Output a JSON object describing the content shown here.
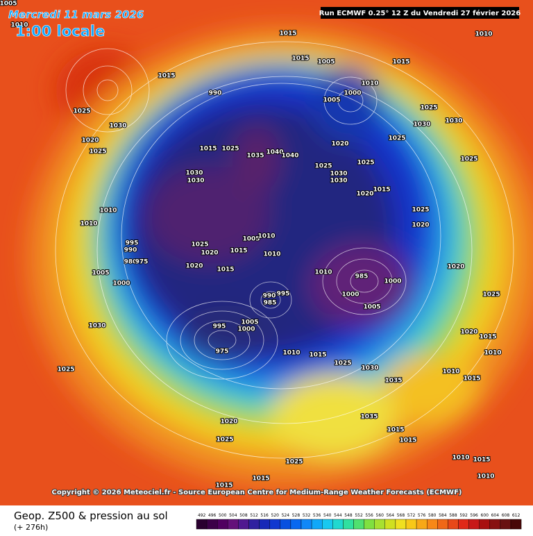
{
  "header": {
    "date": "Mercredi 11 mars 2026",
    "time": "1:00 locale",
    "run": "Run ECMWF 0.25° 12 Z du Vendredi 27 février 2026"
  },
  "footer": {
    "copyright": "Copyright © 2026 Meteociel.fr - Source European Centre for Medium-Range Weather Forecasts (ECMWF)",
    "legend_title": "Geop. Z500 & pression au sol",
    "lead_time": "(+ 276h)"
  },
  "colorbar": {
    "labels": [
      492,
      496,
      500,
      504,
      508,
      512,
      516,
      520,
      524,
      528,
      532,
      536,
      540,
      544,
      548,
      552,
      556,
      560,
      564,
      568,
      572,
      576,
      580,
      584,
      588,
      592,
      596,
      600,
      604,
      608,
      612
    ]
  },
  "isobar_labels": [
    1005,
    1010,
    1015,
    1010,
    1015,
    1005,
    1015,
    1015,
    990,
    1000,
    1005,
    1010,
    1025,
    1030,
    1025,
    1030,
    1030,
    1020,
    1025,
    1015,
    1025,
    1035,
    1040,
    1040,
    1020,
    1025,
    1025,
    1025,
    1030,
    1030,
    1025,
    1030,
    1030,
    1020,
    1015,
    1010,
    1010,
    1025,
    1020,
    995,
    990,
    980,
    975,
    1025,
    1020,
    1015,
    1005,
    1010,
    1010,
    1020,
    1015,
    1005,
    1000,
    1010,
    985,
    1000,
    1005,
    1000,
    990,
    985,
    995,
    995,
    1005,
    1000,
    975,
    1030,
    1025,
    1010,
    1015,
    1025,
    1030,
    1035,
    1035,
    1015,
    1015,
    1020,
    1025,
    1025,
    1015,
    1015,
    1010,
    1015,
    1010,
    1015,
    1010,
    1020,
    1025,
    1020,
    1015,
    1010
  ]
}
